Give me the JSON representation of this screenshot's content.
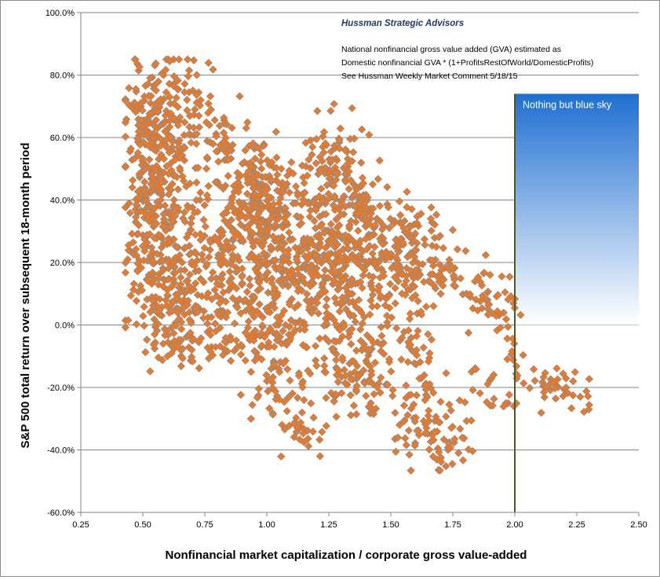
{
  "chart_data": {
    "type": "scatter",
    "title": "",
    "source_label": "Hussman Strategic Advisors",
    "notes": [
      "National nonfinancial gross value added (GVA) estimated as",
      "Domestic nonfinancial GVA * (1+ProfitsRestOfWorld/DomesticProfits)",
      "See Hussman Weekly Market Comment  5/18/15"
    ],
    "xlabel": "Nonfinancial market capitalization / corporate gross value-added",
    "ylabel": "S&P 500 total return over subsequent 18-month period",
    "xlim": [
      0.25,
      2.5
    ],
    "ylim": [
      -60,
      100
    ],
    "x_ticks": [
      "0.25",
      "0.50",
      "0.75",
      "1.00",
      "1.25",
      "1.50",
      "1.75",
      "2.00",
      "2.25",
      "2.50"
    ],
    "y_ticks": [
      "100.0%",
      "80.0%",
      "60.0%",
      "40.0%",
      "20.0%",
      "0.0%",
      "-20.0%",
      "-40.0%",
      "-60.0%"
    ],
    "gridlines": "horizontal",
    "marker": "diamond",
    "colors": {
      "marker_fill": "#f07820",
      "marker_stroke": "#8a8a8a",
      "band_top": "#1f6fd1",
      "band_bottom": "#ffffff",
      "vline": "#4a5a20"
    },
    "annotation": {
      "text": "Nothing but blue sky",
      "x_start": 2.0,
      "x_end": 2.5,
      "y_top": 74,
      "y_bottom": 0
    },
    "reference_line_x": 2.0,
    "series": [
      {
        "values": [
          {
            "cx": 0.57,
            "cy": 62,
            "sx": 0.07,
            "sy": 11,
            "n": 220
          },
          {
            "cx": 0.52,
            "cy": 38,
            "sx": 0.05,
            "sy": 12,
            "n": 110
          },
          {
            "cx": 0.62,
            "cy": 18,
            "sx": 0.09,
            "sy": 14,
            "n": 220
          },
          {
            "cx": 0.66,
            "cy": 0,
            "sx": 0.07,
            "sy": 9,
            "n": 80
          },
          {
            "cx": 0.72,
            "cy": 72,
            "sx": 0.04,
            "sy": 8,
            "n": 26
          },
          {
            "cx": 0.82,
            "cy": 58,
            "sx": 0.05,
            "sy": 9,
            "n": 45
          },
          {
            "cx": 0.85,
            "cy": 22,
            "sx": 0.07,
            "sy": 14,
            "n": 130
          },
          {
            "cx": 0.87,
            "cy": -1,
            "sx": 0.06,
            "sy": 6,
            "n": 35
          },
          {
            "cx": 0.97,
            "cy": 42,
            "sx": 0.07,
            "sy": 8,
            "n": 140
          },
          {
            "cx": 1.02,
            "cy": 28,
            "sx": 0.07,
            "sy": 10,
            "n": 120
          },
          {
            "cx": 1.0,
            "cy": 5,
            "sx": 0.07,
            "sy": 10,
            "n": 90
          },
          {
            "cx": 1.07,
            "cy": -15,
            "sx": 0.08,
            "sy": 8,
            "n": 60
          },
          {
            "cx": 1.13,
            "cy": -35,
            "sx": 0.05,
            "sy": 4,
            "n": 24
          },
          {
            "cx": 1.27,
            "cy": 52,
            "sx": 0.07,
            "sy": 8,
            "n": 90
          },
          {
            "cx": 1.22,
            "cy": 25,
            "sx": 0.08,
            "sy": 11,
            "n": 200
          },
          {
            "cx": 1.3,
            "cy": 3,
            "sx": 0.09,
            "sy": 12,
            "n": 160
          },
          {
            "cx": 1.38,
            "cy": -18,
            "sx": 0.08,
            "sy": 6,
            "n": 60
          },
          {
            "cx": 1.38,
            "cy": 35,
            "sx": 0.06,
            "sy": 9,
            "n": 80
          },
          {
            "cx": 1.52,
            "cy": 20,
            "sx": 0.08,
            "sy": 10,
            "n": 140
          },
          {
            "cx": 1.6,
            "cy": 30,
            "sx": 0.07,
            "sy": 5,
            "n": 40
          },
          {
            "cx": 1.6,
            "cy": -8,
            "sx": 0.04,
            "sy": 5,
            "n": 30
          },
          {
            "cx": 1.65,
            "cy": -30,
            "sx": 0.06,
            "sy": 7,
            "n": 70
          },
          {
            "cx": 1.75,
            "cy": -40,
            "sx": 0.04,
            "sy": 4,
            "n": 20
          },
          {
            "cx": 1.72,
            "cy": 18,
            "sx": 0.05,
            "sy": 6,
            "n": 35
          },
          {
            "cx": 1.9,
            "cy": 6,
            "sx": 0.06,
            "sy": 6,
            "n": 45
          },
          {
            "cx": 1.88,
            "cy": -22,
            "sx": 0.06,
            "sy": 4,
            "n": 20
          },
          {
            "cx": 2.0,
            "cy": -12,
            "sx": 0.02,
            "sy": 6,
            "n": 14
          },
          {
            "cx": 2.17,
            "cy": -21,
            "sx": 0.07,
            "sy": 4,
            "n": 42
          }
        ]
      }
    ]
  }
}
